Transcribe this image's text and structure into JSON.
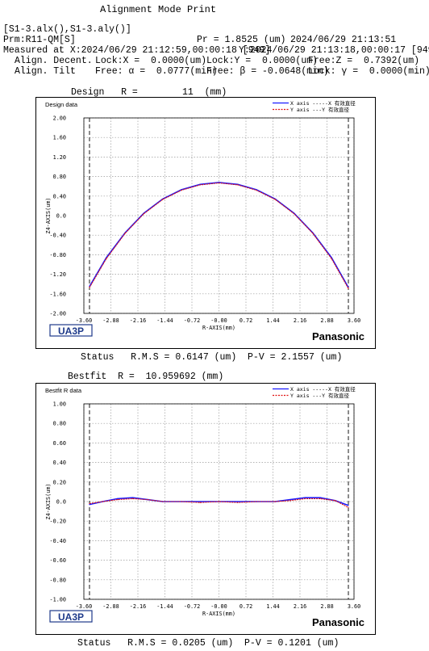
{
  "header": {
    "title": "Alignment Mode Print",
    "files": "[S1-3.alx(),S1-3.aly()]",
    "prm": "Prm:R11-QM[S]",
    "pr": "Pr = 1.8525 (um)",
    "date": "2024/06/29 21:13:51",
    "measured": "Measured at X:2024/06/29 21:12:59,00:00:18 [949]",
    "measured_y": "Y:2024/06/29 21:13:18,00:00:17 [949]",
    "decent_label": "Align. Decent.",
    "decent_x": "Lock:X =  0.0000(um)",
    "decent_y": "Lock:Y =  0.0000(um)",
    "decent_z": "Free:Z =  0.7392(um)",
    "tilt_label": "Align. Tilt",
    "tilt_a": "Free: α =  0.0777(min)",
    "tilt_b": "Free: β = -0.0648(min)",
    "tilt_g": "Lock: γ =  0.0000(min)"
  },
  "charts": [
    {
      "heading": "Design   R =        11  (mm)",
      "panel_title": "Design data",
      "legend": [
        "X axis -----X 有效直径",
        "Y axis ---Y 有效直径"
      ],
      "status": "Status   R.M.S = 0.6147 (um)  P-V = 2.1557 (um)"
    },
    {
      "heading": "Bestfit  R =  10.959692 (mm)",
      "panel_title": "Bestfit R data",
      "legend": [
        "X axis -----X 有效直径",
        "Y axis ---Y 有效直径"
      ],
      "status": "Status   R.M.S = 0.0205 (um)  P-V = 0.1201 (um)"
    }
  ],
  "brand": {
    "left": "UA3P",
    "right": "Panasonic"
  },
  "colors": {
    "x_series": "#1a1aff",
    "y_series": "#e01010",
    "grid": "#9a9a9a"
  },
  "chart_data": [
    {
      "type": "line",
      "xlabel": "R-AXIS(mm)",
      "ylabel": "Z4-AXIS(um)",
      "xlim": [
        -3.6,
        3.6
      ],
      "ylim": [
        -2.0,
        2.0
      ],
      "xticks": [
        "-3.60",
        "-2.88",
        "-2.16",
        "-1.44",
        "-0.72",
        "-0.00",
        "0.72",
        "1.44",
        "2.16",
        "2.88",
        "3.60"
      ],
      "yticks": [
        "2.00",
        "1.60",
        "1.20",
        "0.80",
        "0.40",
        "0.0",
        "-0.40",
        "-0.80",
        "-1.20",
        "-1.60",
        "-2.00"
      ],
      "effective_diameter_r": 3.45,
      "series": [
        {
          "name": "X axis",
          "color": "#1a1aff",
          "x": [
            -3.45,
            -3.0,
            -2.5,
            -2.0,
            -1.5,
            -1.0,
            -0.5,
            0.0,
            0.5,
            1.0,
            1.5,
            2.0,
            2.5,
            3.0,
            3.45
          ],
          "y": [
            -1.45,
            -0.86,
            -0.35,
            0.05,
            0.34,
            0.53,
            0.64,
            0.68,
            0.64,
            0.53,
            0.34,
            0.05,
            -0.35,
            -0.86,
            -1.47
          ]
        },
        {
          "name": "Y axis",
          "color": "#e01010",
          "x": [
            -3.45,
            -3.0,
            -2.5,
            -2.0,
            -1.5,
            -1.0,
            -0.5,
            0.0,
            0.5,
            1.0,
            1.5,
            2.0,
            2.5,
            3.0,
            3.45
          ],
          "y": [
            -1.47,
            -0.88,
            -0.36,
            0.04,
            0.33,
            0.52,
            0.63,
            0.67,
            0.63,
            0.52,
            0.33,
            0.04,
            -0.36,
            -0.88,
            -1.49
          ]
        }
      ]
    },
    {
      "type": "line",
      "xlabel": "R-AXIS(mm)",
      "ylabel": "Z4-AXIS(um)",
      "xlim": [
        -3.6,
        3.6
      ],
      "ylim": [
        -1.0,
        1.0
      ],
      "xticks": [
        "-3.60",
        "-2.88",
        "-2.16",
        "-1.44",
        "-0.72",
        "-0.00",
        "0.72",
        "1.44",
        "2.16",
        "2.88",
        "3.60"
      ],
      "yticks": [
        "1.00",
        "0.80",
        "0.60",
        "0.40",
        "0.20",
        "0.0",
        "-0.20",
        "-0.40",
        "-0.60",
        "-0.80",
        "-1.00"
      ],
      "effective_diameter_r": 3.45,
      "series": [
        {
          "name": "X axis",
          "color": "#1a1aff",
          "x": [
            -3.45,
            -3.1,
            -2.7,
            -2.3,
            -1.9,
            -1.5,
            -1.0,
            -0.5,
            0.0,
            0.5,
            1.0,
            1.5,
            1.9,
            2.3,
            2.7,
            3.1,
            3.45
          ],
          "y": [
            -0.03,
            0.0,
            0.03,
            0.04,
            0.02,
            0.0,
            0.0,
            0.0,
            0.0,
            0.0,
            0.0,
            0.0,
            0.02,
            0.04,
            0.04,
            0.01,
            -0.04
          ]
        },
        {
          "name": "Y axis",
          "color": "#e01010",
          "x": [
            -3.45,
            -3.1,
            -2.7,
            -2.3,
            -1.9,
            -1.5,
            -1.0,
            -0.5,
            0.0,
            0.5,
            1.0,
            1.5,
            1.9,
            2.3,
            2.7,
            3.1,
            3.45
          ],
          "y": [
            -0.02,
            0.0,
            0.02,
            0.03,
            0.02,
            0.0,
            0.0,
            -0.01,
            0.0,
            -0.01,
            0.0,
            0.0,
            0.01,
            0.03,
            0.03,
            0.01,
            -0.06
          ]
        }
      ]
    }
  ]
}
